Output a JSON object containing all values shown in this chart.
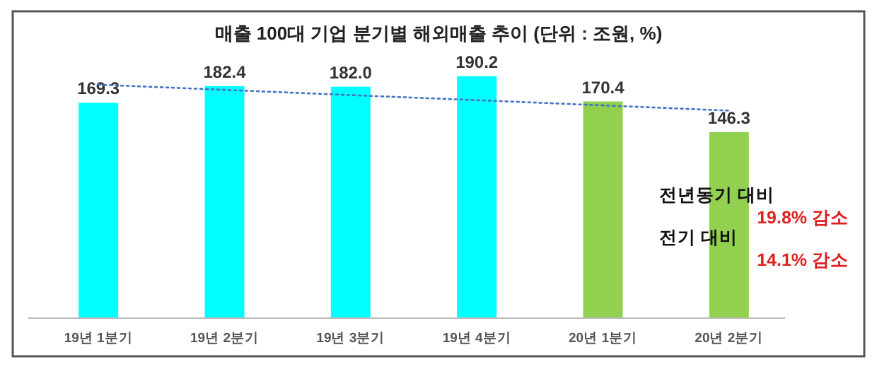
{
  "chart_data": {
    "type": "bar",
    "title": "매출 100대 기업 분기별 해외매출 추이 (단위 : 조원, %)",
    "categories": [
      "19년 1분기",
      "19년 2분기",
      "19년 3분기",
      "19년 4분기",
      "20년 1분기",
      "20년 2분기"
    ],
    "series": [
      {
        "colors": [
          "#00ffff",
          "#00ffff",
          "#00ffff",
          "#00ffff",
          "#92d050",
          "#92d050"
        ],
        "values": [
          169.3,
          182.4,
          182.0,
          190.2,
          170.4,
          146.3
        ],
        "value_labels": [
          "169.3",
          "182.4",
          "182.0",
          "190.2",
          "170.4",
          "146.3"
        ]
      },
      {
        "type": "line",
        "color": "#4472c4",
        "line_style": "dotted",
        "values": [
          183.6,
          179.5,
          175.4,
          171.4,
          167.3,
          163.2
        ]
      }
    ],
    "annotations": [
      "전년동기 대비",
      "19.8% 감소",
      "전기 대비",
      "14.1% 감소"
    ]
  }
}
